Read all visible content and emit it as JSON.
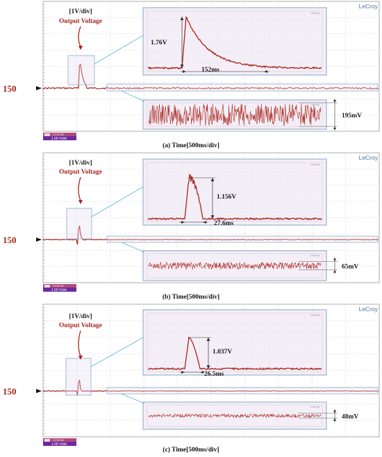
{
  "brand": "LeCroy",
  "zoom_brand": "LeCroy",
  "channel_label": "150",
  "scale_badge_top": "C2 DC1M",
  "scale_badge_value": "1.00 V/div",
  "colors": {
    "trace": "#a8241c",
    "zoom_border": "#9ab4cc",
    "callout_line": "#58b4d4",
    "grid": "#b9b0c8",
    "zoom_bg": "#f4eef6",
    "ch_label": "#a8241c"
  },
  "panels": [
    {
      "caption": "(a) Time[500ms/div]",
      "header_line1": "[1V/div]",
      "header_line2": "Output Voltage",
      "peak_label": "1.76V",
      "time_label": "152ms",
      "noise_label": "195mV"
    },
    {
      "caption": "(b) Time[500ms/div]",
      "header_line1": "[1V/div]",
      "header_line2": "Output Voltage",
      "peak_label": "1.156V",
      "time_label": "27.6ms",
      "noise_label": "65mV"
    },
    {
      "caption": "(c) Time[500ms/div]",
      "header_line1": "[1V/div]",
      "header_line2": "Output Voltage",
      "peak_label": "1.037V",
      "time_label": "26.5ms",
      "noise_label": "48mV"
    }
  ],
  "chart_data": [
    {
      "type": "line",
      "caption": "(a) Time[500ms/div]",
      "x_division": "500ms/div",
      "y_division": "1V/div",
      "pulse_peak_v": 1.76,
      "pulse_decay_ms": 152,
      "noise_pp_mv": 195,
      "grid": true
    },
    {
      "type": "line",
      "caption": "(b) Time[500ms/div]",
      "x_division": "500ms/div",
      "y_division": "1V/div",
      "pulse_peak_v": 1.156,
      "pulse_decay_ms": 27.6,
      "noise_pp_mv": 65,
      "grid": true
    },
    {
      "type": "line",
      "caption": "(c) Time[500ms/div]",
      "x_division": "500ms/div",
      "y_division": "1V/div",
      "pulse_peak_v": 1.037,
      "pulse_decay_ms": 26.5,
      "noise_pp_mv": 48,
      "grid": true
    }
  ]
}
